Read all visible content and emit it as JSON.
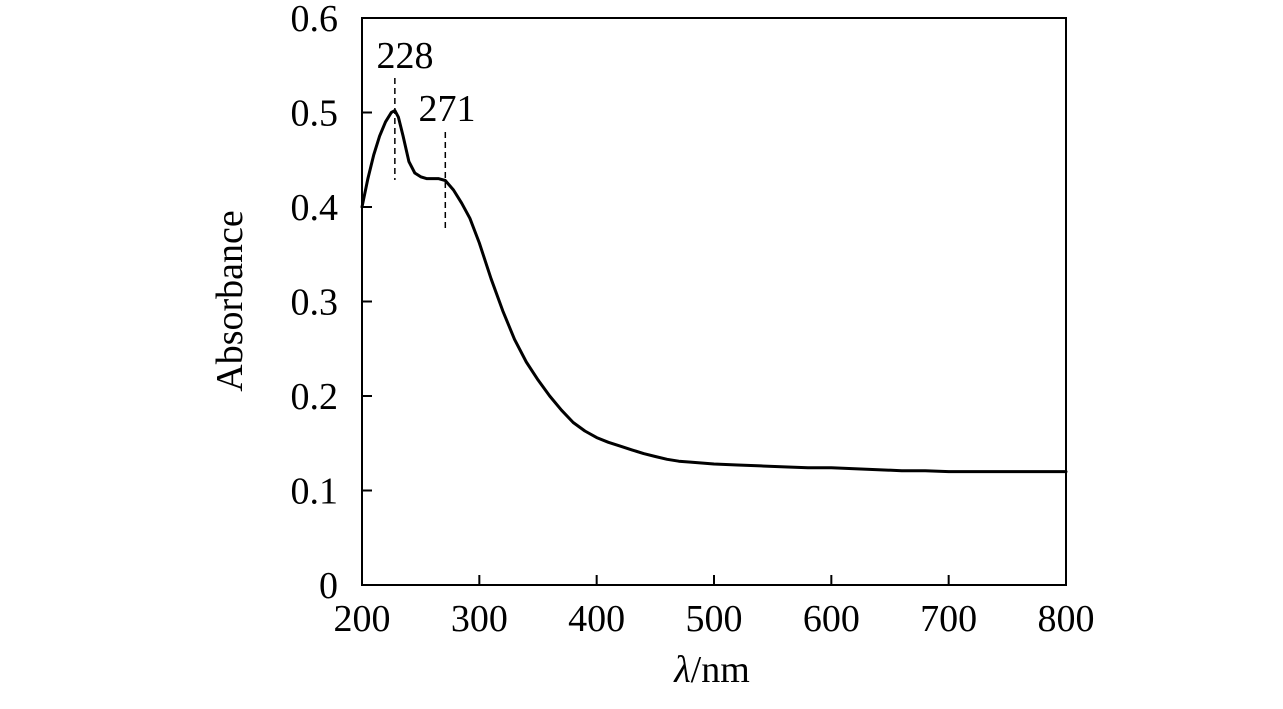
{
  "chart_data": {
    "type": "line",
    "xlabel_symbol": "λ",
    "xlabel_unit": "/nm",
    "ylabel": "Absorbance",
    "xlim": [
      200,
      800
    ],
    "ylim": [
      0,
      0.6
    ],
    "xticks": [
      200,
      300,
      400,
      500,
      600,
      700,
      800
    ],
    "yticks": [
      0,
      0.1,
      0.2,
      0.3,
      0.4,
      0.5,
      0.6
    ],
    "xtick_labels": [
      "200",
      "300",
      "400",
      "500",
      "600",
      "700",
      "800"
    ],
    "ytick_labels": [
      "0",
      "0.1",
      "0.2",
      "0.3",
      "0.4",
      "0.5",
      "0.6"
    ],
    "grid": false,
    "line_color": "#000000",
    "series": [
      {
        "x": [
          200,
          205,
          210,
          215,
          220,
          225,
          228,
          231,
          235,
          240,
          245,
          250,
          255,
          260,
          265,
          271,
          278,
          285,
          292,
          300,
          310,
          320,
          330,
          340,
          350,
          360,
          370,
          380,
          390,
          400,
          410,
          420,
          430,
          440,
          450,
          460,
          470,
          480,
          500,
          520,
          540,
          560,
          580,
          600,
          620,
          640,
          660,
          680,
          700,
          720,
          740,
          760,
          780,
          800
        ],
        "y": [
          0.4,
          0.43,
          0.455,
          0.475,
          0.49,
          0.5,
          0.502,
          0.495,
          0.475,
          0.448,
          0.436,
          0.432,
          0.43,
          0.43,
          0.43,
          0.428,
          0.418,
          0.404,
          0.388,
          0.362,
          0.324,
          0.29,
          0.26,
          0.236,
          0.217,
          0.2,
          0.185,
          0.172,
          0.163,
          0.156,
          0.151,
          0.147,
          0.143,
          0.139,
          0.136,
          0.133,
          0.131,
          0.13,
          0.128,
          0.127,
          0.126,
          0.125,
          0.124,
          0.124,
          0.123,
          0.122,
          0.121,
          0.121,
          0.12,
          0.12,
          0.12,
          0.12,
          0.12,
          0.12
        ]
      }
    ],
    "annotations": [
      {
        "label": "228",
        "x": 228
      },
      {
        "label": "271",
        "x": 271
      }
    ]
  }
}
